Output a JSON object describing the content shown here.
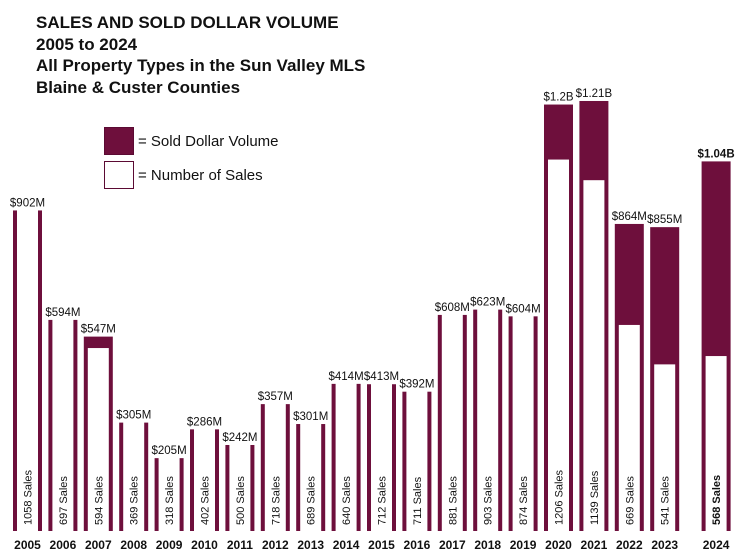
{
  "title_lines": [
    "SALES AND SOLD DOLLAR VOLUME",
    "2005 to 2024",
    "All Property Types in the Sun Valley MLS",
    "Blaine & Custer Counties"
  ],
  "legend": {
    "volume_label": "= Sold Dollar Volume",
    "sales_label": "= Number of Sales"
  },
  "colors": {
    "volume": "#6e0f3c",
    "sales": "#ffffff",
    "border": "#5b0a33",
    "text": "#111111"
  },
  "chart_data": {
    "type": "bar",
    "title": "SALES AND SOLD DOLLAR VOLUME 2005 to 2024",
    "categories": [
      "2005",
      "2006",
      "2007",
      "2008",
      "2009",
      "2010",
      "2011",
      "2012",
      "2013",
      "2014",
      "2015",
      "2016",
      "2017",
      "2018",
      "2019",
      "2020",
      "2021",
      "2022",
      "2023",
      "2024"
    ],
    "series": [
      {
        "name": "Sold Dollar Volume",
        "unit": "$M",
        "values": [
          902,
          594,
          547,
          305,
          205,
          286,
          242,
          357,
          301,
          414,
          413,
          392,
          608,
          623,
          604,
          1200,
          1210,
          864,
          855,
          1040
        ],
        "labels": [
          "$902M",
          "$594M",
          "$547M",
          "$305M",
          "$205M",
          "$286M",
          "$242M",
          "$357M",
          "$301M",
          "$414M",
          "$413M",
          "$392M",
          "$608M",
          "$623M",
          "$604M",
          "$1.2B",
          "$1.21B",
          "$864M",
          "$855M",
          "$1.04B"
        ]
      },
      {
        "name": "Number of Sales",
        "values": [
          1058,
          697,
          594,
          369,
          318,
          402,
          500,
          718,
          689,
          640,
          712,
          711,
          881,
          903,
          874,
          1206,
          1139,
          669,
          541,
          568
        ],
        "labels": [
          "1058 Sales",
          "697 Sales",
          "594 Sales",
          "369 Sales",
          "318 Sales",
          "402 Sales",
          "500 Sales",
          "718 Sales",
          "689 Sales",
          "640 Sales",
          "712 Sales",
          "711 Sales",
          "881 Sales",
          "903 Sales",
          "874 Sales",
          "1206 Sales",
          "1139 Sales",
          "669 Sales",
          "541 Sales",
          "568 Sales"
        ]
      }
    ],
    "ylim_volume": [
      0,
      1300
    ],
    "ylim_sales": [
      0,
      1500
    ],
    "highlight_category": "2024",
    "grid": false,
    "legend_position": "top-left"
  }
}
